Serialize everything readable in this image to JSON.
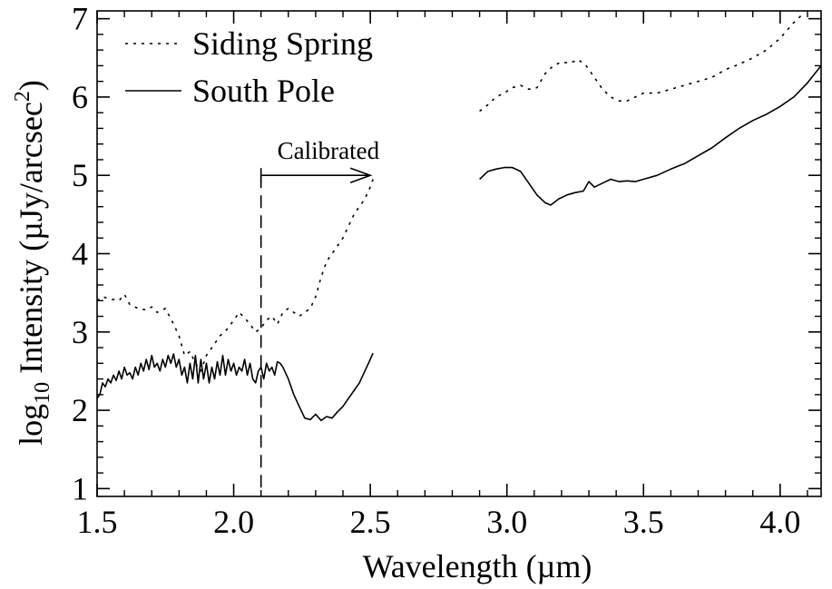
{
  "chart_data": {
    "type": "line",
    "title": "",
    "xlabel": "Wavelength (µm)",
    "ylabel": {
      "prefix": "log",
      "sub": "10",
      "middle": " Intensity (µJy/arcsec",
      "sup": "2",
      "suffix": ")"
    },
    "xlim": [
      1.5,
      4.15
    ],
    "ylim": [
      0.9,
      7.1
    ],
    "xticks": [
      1.5,
      2.0,
      2.5,
      3.0,
      3.5,
      4.0
    ],
    "xtick_labels": [
      "1.5",
      "2.0",
      "2.5",
      "3.0",
      "3.5",
      "4.0"
    ],
    "yticks": [
      1,
      2,
      3,
      4,
      5,
      6,
      7
    ],
    "ytick_labels": [
      "1",
      "2",
      "3",
      "4",
      "5",
      "6",
      "7"
    ],
    "grid": false,
    "legend": "top-left",
    "series": [
      {
        "name": "Siding Spring",
        "style": "dotted",
        "color": "#000000",
        "segments": [
          [
            [
              1.5,
              3.4
            ],
            [
              1.52,
              3.45
            ],
            [
              1.55,
              3.42
            ],
            [
              1.58,
              3.4
            ],
            [
              1.6,
              3.48
            ],
            [
              1.62,
              3.35
            ],
            [
              1.65,
              3.3
            ],
            [
              1.68,
              3.28
            ],
            [
              1.7,
              3.32
            ],
            [
              1.72,
              3.25
            ],
            [
              1.75,
              3.3
            ],
            [
              1.78,
              3.1
            ],
            [
              1.8,
              2.95
            ],
            [
              1.82,
              2.7
            ],
            [
              1.84,
              2.75
            ],
            [
              1.86,
              2.6
            ],
            [
              1.88,
              2.5
            ],
            [
              1.9,
              2.7
            ],
            [
              1.93,
              2.85
            ],
            [
              1.95,
              2.95
            ],
            [
              1.98,
              3.05
            ],
            [
              2.0,
              3.15
            ],
            [
              2.02,
              3.25
            ],
            [
              2.04,
              3.18
            ],
            [
              2.06,
              3.1
            ],
            [
              2.08,
              3.0
            ],
            [
              2.1,
              3.05
            ],
            [
              2.12,
              3.15
            ],
            [
              2.14,
              3.2
            ],
            [
              2.16,
              3.1
            ],
            [
              2.18,
              3.25
            ],
            [
              2.2,
              3.3
            ],
            [
              2.22,
              3.25
            ],
            [
              2.24,
              3.2
            ],
            [
              2.26,
              3.25
            ],
            [
              2.28,
              3.3
            ],
            [
              2.3,
              3.45
            ],
            [
              2.32,
              3.7
            ],
            [
              2.34,
              3.9
            ],
            [
              2.36,
              4.0
            ],
            [
              2.38,
              4.1
            ],
            [
              2.4,
              4.2
            ],
            [
              2.42,
              4.35
            ],
            [
              2.44,
              4.5
            ],
            [
              2.46,
              4.6
            ],
            [
              2.48,
              4.7
            ],
            [
              2.5,
              4.85
            ],
            [
              2.51,
              4.95
            ]
          ],
          [
            [
              2.9,
              5.82
            ],
            [
              2.93,
              5.9
            ],
            [
              2.96,
              6.0
            ],
            [
              2.99,
              6.05
            ],
            [
              3.02,
              6.12
            ],
            [
              3.05,
              6.15
            ],
            [
              3.08,
              6.1
            ],
            [
              3.11,
              6.12
            ],
            [
              3.14,
              6.3
            ],
            [
              3.17,
              6.4
            ],
            [
              3.2,
              6.45
            ],
            [
              3.23,
              6.43
            ],
            [
              3.26,
              6.48
            ],
            [
              3.29,
              6.4
            ],
            [
              3.32,
              6.25
            ],
            [
              3.35,
              6.1
            ],
            [
              3.38,
              6.0
            ],
            [
              3.41,
              5.95
            ],
            [
              3.44,
              5.95
            ],
            [
              3.47,
              6.0
            ],
            [
              3.5,
              6.05
            ],
            [
              3.55,
              6.05
            ],
            [
              3.6,
              6.1
            ],
            [
              3.65,
              6.15
            ],
            [
              3.7,
              6.2
            ],
            [
              3.75,
              6.25
            ],
            [
              3.8,
              6.35
            ],
            [
              3.85,
              6.42
            ],
            [
              3.9,
              6.5
            ],
            [
              3.95,
              6.6
            ],
            [
              4.0,
              6.75
            ],
            [
              4.05,
              6.95
            ],
            [
              4.08,
              7.05
            ]
          ]
        ]
      },
      {
        "name": "South Pole",
        "style": "solid",
        "color": "#000000",
        "segments": [
          [
            [
              1.5,
              2.15
            ],
            [
              1.51,
              2.2
            ],
            [
              1.52,
              2.35
            ],
            [
              1.53,
              2.3
            ],
            [
              1.54,
              2.4
            ],
            [
              1.55,
              2.35
            ],
            [
              1.56,
              2.45
            ],
            [
              1.57,
              2.38
            ],
            [
              1.58,
              2.5
            ],
            [
              1.59,
              2.4
            ],
            [
              1.6,
              2.55
            ],
            [
              1.61,
              2.45
            ],
            [
              1.62,
              2.48
            ],
            [
              1.63,
              2.4
            ],
            [
              1.64,
              2.55
            ],
            [
              1.65,
              2.45
            ],
            [
              1.66,
              2.6
            ],
            [
              1.67,
              2.5
            ],
            [
              1.68,
              2.65
            ],
            [
              1.69,
              2.52
            ],
            [
              1.7,
              2.7
            ],
            [
              1.71,
              2.55
            ],
            [
              1.72,
              2.6
            ],
            [
              1.73,
              2.5
            ],
            [
              1.74,
              2.65
            ],
            [
              1.75,
              2.55
            ],
            [
              1.76,
              2.7
            ],
            [
              1.77,
              2.6
            ],
            [
              1.78,
              2.72
            ],
            [
              1.79,
              2.55
            ],
            [
              1.8,
              2.65
            ],
            [
              1.81,
              2.45
            ],
            [
              1.82,
              2.55
            ],
            [
              1.83,
              2.35
            ],
            [
              1.84,
              2.6
            ],
            [
              1.85,
              2.4
            ],
            [
              1.86,
              2.7
            ],
            [
              1.87,
              2.35
            ],
            [
              1.88,
              2.65
            ],
            [
              1.89,
              2.4
            ],
            [
              1.9,
              2.6
            ],
            [
              1.91,
              2.35
            ],
            [
              1.92,
              2.55
            ],
            [
              1.93,
              2.4
            ],
            [
              1.94,
              2.62
            ],
            [
              1.95,
              2.45
            ],
            [
              1.96,
              2.7
            ],
            [
              1.97,
              2.45
            ],
            [
              1.98,
              2.65
            ],
            [
              1.99,
              2.5
            ],
            [
              2.0,
              2.6
            ],
            [
              2.01,
              2.45
            ],
            [
              2.02,
              2.55
            ],
            [
              2.03,
              2.5
            ],
            [
              2.04,
              2.65
            ],
            [
              2.05,
              2.45
            ],
            [
              2.06,
              2.6
            ],
            [
              2.07,
              2.4
            ],
            [
              2.08,
              2.35
            ],
            [
              2.09,
              2.5
            ],
            [
              2.1,
              2.55
            ],
            [
              2.11,
              2.4
            ],
            [
              2.12,
              2.6
            ],
            [
              2.13,
              2.5
            ],
            [
              2.14,
              2.55
            ],
            [
              2.15,
              2.45
            ],
            [
              2.16,
              2.62
            ],
            [
              2.17,
              2.6
            ],
            [
              2.18,
              2.55
            ],
            [
              2.2,
              2.4
            ],
            [
              2.22,
              2.2
            ],
            [
              2.24,
              2.05
            ],
            [
              2.26,
              1.9
            ],
            [
              2.28,
              1.88
            ],
            [
              2.3,
              1.95
            ],
            [
              2.32,
              1.87
            ],
            [
              2.34,
              1.92
            ],
            [
              2.36,
              1.9
            ],
            [
              2.38,
              1.98
            ],
            [
              2.4,
              2.05
            ],
            [
              2.42,
              2.15
            ],
            [
              2.44,
              2.25
            ],
            [
              2.46,
              2.35
            ],
            [
              2.48,
              2.5
            ],
            [
              2.5,
              2.65
            ],
            [
              2.51,
              2.73
            ]
          ],
          [
            [
              2.9,
              4.95
            ],
            [
              2.93,
              5.05
            ],
            [
              2.96,
              5.08
            ],
            [
              2.99,
              5.1
            ],
            [
              3.02,
              5.1
            ],
            [
              3.05,
              5.05
            ],
            [
              3.08,
              4.9
            ],
            [
              3.11,
              4.75
            ],
            [
              3.14,
              4.65
            ],
            [
              3.16,
              4.62
            ],
            [
              3.19,
              4.7
            ],
            [
              3.22,
              4.75
            ],
            [
              3.25,
              4.78
            ],
            [
              3.28,
              4.8
            ],
            [
              3.3,
              4.92
            ],
            [
              3.32,
              4.85
            ],
            [
              3.35,
              4.9
            ],
            [
              3.38,
              4.95
            ],
            [
              3.41,
              4.92
            ],
            [
              3.44,
              4.93
            ],
            [
              3.47,
              4.92
            ],
            [
              3.5,
              4.95
            ],
            [
              3.55,
              5.0
            ],
            [
              3.6,
              5.08
            ],
            [
              3.65,
              5.15
            ],
            [
              3.7,
              5.25
            ],
            [
              3.75,
              5.35
            ],
            [
              3.8,
              5.48
            ],
            [
              3.85,
              5.6
            ],
            [
              3.9,
              5.7
            ],
            [
              3.95,
              5.78
            ],
            [
              4.0,
              5.88
            ],
            [
              4.05,
              6.0
            ],
            [
              4.1,
              6.18
            ],
            [
              4.15,
              6.4
            ]
          ]
        ]
      }
    ],
    "annotations": [
      {
        "text": "Calibrated",
        "type": "arrow",
        "x_start": 2.1,
        "x_end": 2.5,
        "y": 5.0
      },
      {
        "type": "vline",
        "x": 2.1,
        "style": "dashed"
      }
    ]
  }
}
